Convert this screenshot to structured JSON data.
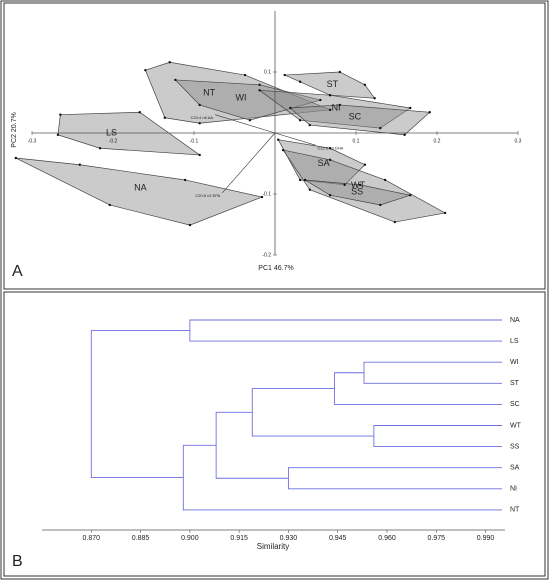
{
  "chart_data": [
    {
      "type": "scatter",
      "panel_label": "A",
      "xlabel": "PC1 46.7%",
      "ylabel": "PC2 20.7%",
      "xlim": [
        -0.3,
        0.3
      ],
      "ylim": [
        -0.2,
        0.2
      ],
      "xticks": [
        -0.3,
        -0.2,
        -0.1,
        0.1,
        0.2,
        0.3
      ],
      "yticks": [
        -0.2,
        -0.1,
        0.1
      ],
      "hull_color": "#8c8c8c",
      "point_color": "#111111",
      "groups": [
        {
          "name": "NT",
          "points": [
            [
              -0.16,
              0.103
            ],
            [
              -0.13,
              0.116
            ],
            [
              -0.037,
              0.095
            ],
            [
              0.068,
              0.038
            ],
            [
              -0.093,
              0.016
            ],
            [
              -0.136,
              0.025
            ]
          ]
        },
        {
          "name": "WI",
          "points": [
            [
              -0.123,
              0.087
            ],
            [
              -0.019,
              0.079
            ],
            [
              0.056,
              0.054
            ],
            [
              -0.031,
              0.021
            ],
            [
              -0.093,
              0.046
            ]
          ]
        },
        {
          "name": "NI",
          "points": [
            [
              -0.019,
              0.07
            ],
            [
              0.068,
              0.062
            ],
            [
              0.167,
              0.041
            ],
            [
              0.13,
              0.008
            ],
            [
              0.031,
              0.021
            ]
          ]
        },
        {
          "name": "ST",
          "points": [
            [
              0.012,
              0.095
            ],
            [
              0.08,
              0.1
            ],
            [
              0.111,
              0.079
            ],
            [
              0.123,
              0.057
            ],
            [
              0.068,
              0.062
            ],
            [
              0.031,
              0.084
            ]
          ]
        },
        {
          "name": "SC",
          "points": [
            [
              0.019,
              0.041
            ],
            [
              0.08,
              0.046
            ],
            [
              0.191,
              0.034
            ],
            [
              0.16,
              -0.003
            ],
            [
              0.043,
              0.013
            ]
          ]
        },
        {
          "name": "LS",
          "points": [
            [
              -0.265,
              0.03
            ],
            [
              -0.167,
              0.034
            ],
            [
              -0.093,
              -0.036
            ],
            [
              -0.216,
              -0.025
            ],
            [
              -0.268,
              -0.003
            ]
          ]
        },
        {
          "name": "SA",
          "points": [
            [
              0.004,
              -0.011
            ],
            [
              0.068,
              -0.025
            ],
            [
              0.111,
              -0.052
            ],
            [
              0.086,
              -0.085
            ],
            [
              0.031,
              -0.077
            ]
          ]
        },
        {
          "name": "WT",
          "points": [
            [
              0.01,
              -0.028
            ],
            [
              0.068,
              -0.044
            ],
            [
              0.136,
              -0.077
            ],
            [
              0.21,
              -0.131
            ],
            [
              0.148,
              -0.146
            ],
            [
              0.043,
              -0.093
            ]
          ]
        },
        {
          "name": "SS",
          "points": [
            [
              0.037,
              -0.077
            ],
            [
              0.105,
              -0.085
            ],
            [
              0.167,
              -0.102
            ],
            [
              0.13,
              -0.118
            ],
            [
              0.068,
              -0.102
            ]
          ]
        },
        {
          "name": "NA",
          "points": [
            [
              -0.32,
              -0.041
            ],
            [
              -0.241,
              -0.052
            ],
            [
              -0.111,
              -0.077
            ],
            [
              -0.016,
              -0.105
            ],
            [
              -0.105,
              -0.151
            ],
            [
              -0.204,
              -0.118
            ]
          ]
        }
      ],
      "loadings": [
        {
          "label": "C20:5 n3 EPA",
          "x": -0.065,
          "y": -0.098
        },
        {
          "label": "C20:4 n6 AA",
          "x": -0.074,
          "y": 0.03
        },
        {
          "label": "C22:6 n3 DHA",
          "x": 0.05,
          "y": -0.02
        }
      ]
    },
    {
      "type": "dendrogram",
      "panel_label": "B",
      "xlabel": "Similarity",
      "color": "#6f6fe0",
      "xlim": [
        0.855,
        0.995
      ],
      "xticks": [
        {
          "value": 0.87,
          "label": "0.870"
        },
        0.885,
        {
          "value": 0.9,
          "label": "0.900"
        },
        0.915,
        {
          "value": 0.93,
          "label": "0.930"
        },
        0.945,
        {
          "value": 0.96,
          "label": "0.960"
        },
        0.975,
        {
          "value": 0.99,
          "label": "0.990"
        }
      ],
      "leaves": [
        "NA",
        "LS",
        "WI",
        "ST",
        "SC",
        "WT",
        "SS",
        "SA",
        "NI",
        "NT"
      ],
      "merges": [
        {
          "children": [
            2,
            3
          ],
          "similarity": 0.953
        },
        {
          "children": [
            10,
            4
          ],
          "similarity": 0.944
        },
        {
          "children": [
            5,
            6
          ],
          "similarity": 0.956
        },
        {
          "children": [
            11,
            12
          ],
          "similarity": 0.919
        },
        {
          "children": [
            7,
            8
          ],
          "similarity": 0.93
        },
        {
          "children": [
            13,
            14
          ],
          "similarity": 0.908
        },
        {
          "children": [
            15,
            9
          ],
          "similarity": 0.898
        },
        {
          "children": [
            0,
            1
          ],
          "similarity": 0.9
        },
        {
          "children": [
            17,
            16
          ],
          "similarity": 0.87
        }
      ]
    }
  ]
}
